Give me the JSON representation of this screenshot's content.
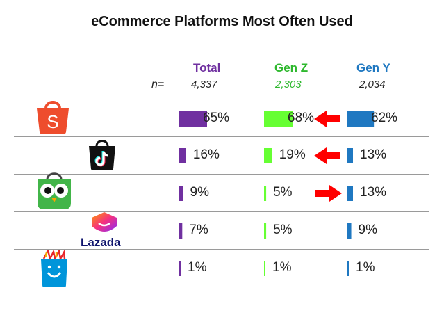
{
  "chart_data": {
    "type": "bar",
    "title": "eCommerce Platforms Most Often Used",
    "n_label": "n=",
    "series": [
      {
        "name": "Total",
        "n": "4,337",
        "color": "#7030a0",
        "values": [
          65,
          16,
          9,
          7,
          1
        ],
        "labels": [
          "65%",
          "16%",
          "9%",
          "7%",
          "1%"
        ]
      },
      {
        "name": "Gen Z",
        "n": "2,303",
        "color": "#66ff33",
        "values": [
          68,
          19,
          5,
          5,
          1
        ],
        "labels": [
          "68%",
          "19%",
          "5%",
          "5%",
          "1%"
        ]
      },
      {
        "name": "Gen Y",
        "n": "2,034",
        "color": "#1f78c1",
        "values": [
          62,
          13,
          13,
          9,
          1
        ],
        "labels": [
          "62%",
          "13%",
          "13%",
          "9%",
          "1%"
        ]
      }
    ],
    "platform_icons": [
      "shopee-logo-icon",
      "tiktok-logo-icon",
      "tokopedia-logo-icon",
      "lazada-logo-icon",
      "blibli-logo-icon"
    ],
    "lazada_wordmark": "Lazada",
    "arrows": [
      {
        "row": 0,
        "direction": "left",
        "color": "#ff0000"
      },
      {
        "row": 1,
        "direction": "left",
        "color": "#ff0000"
      },
      {
        "row": 2,
        "direction": "right",
        "color": "#ff0000"
      }
    ]
  }
}
